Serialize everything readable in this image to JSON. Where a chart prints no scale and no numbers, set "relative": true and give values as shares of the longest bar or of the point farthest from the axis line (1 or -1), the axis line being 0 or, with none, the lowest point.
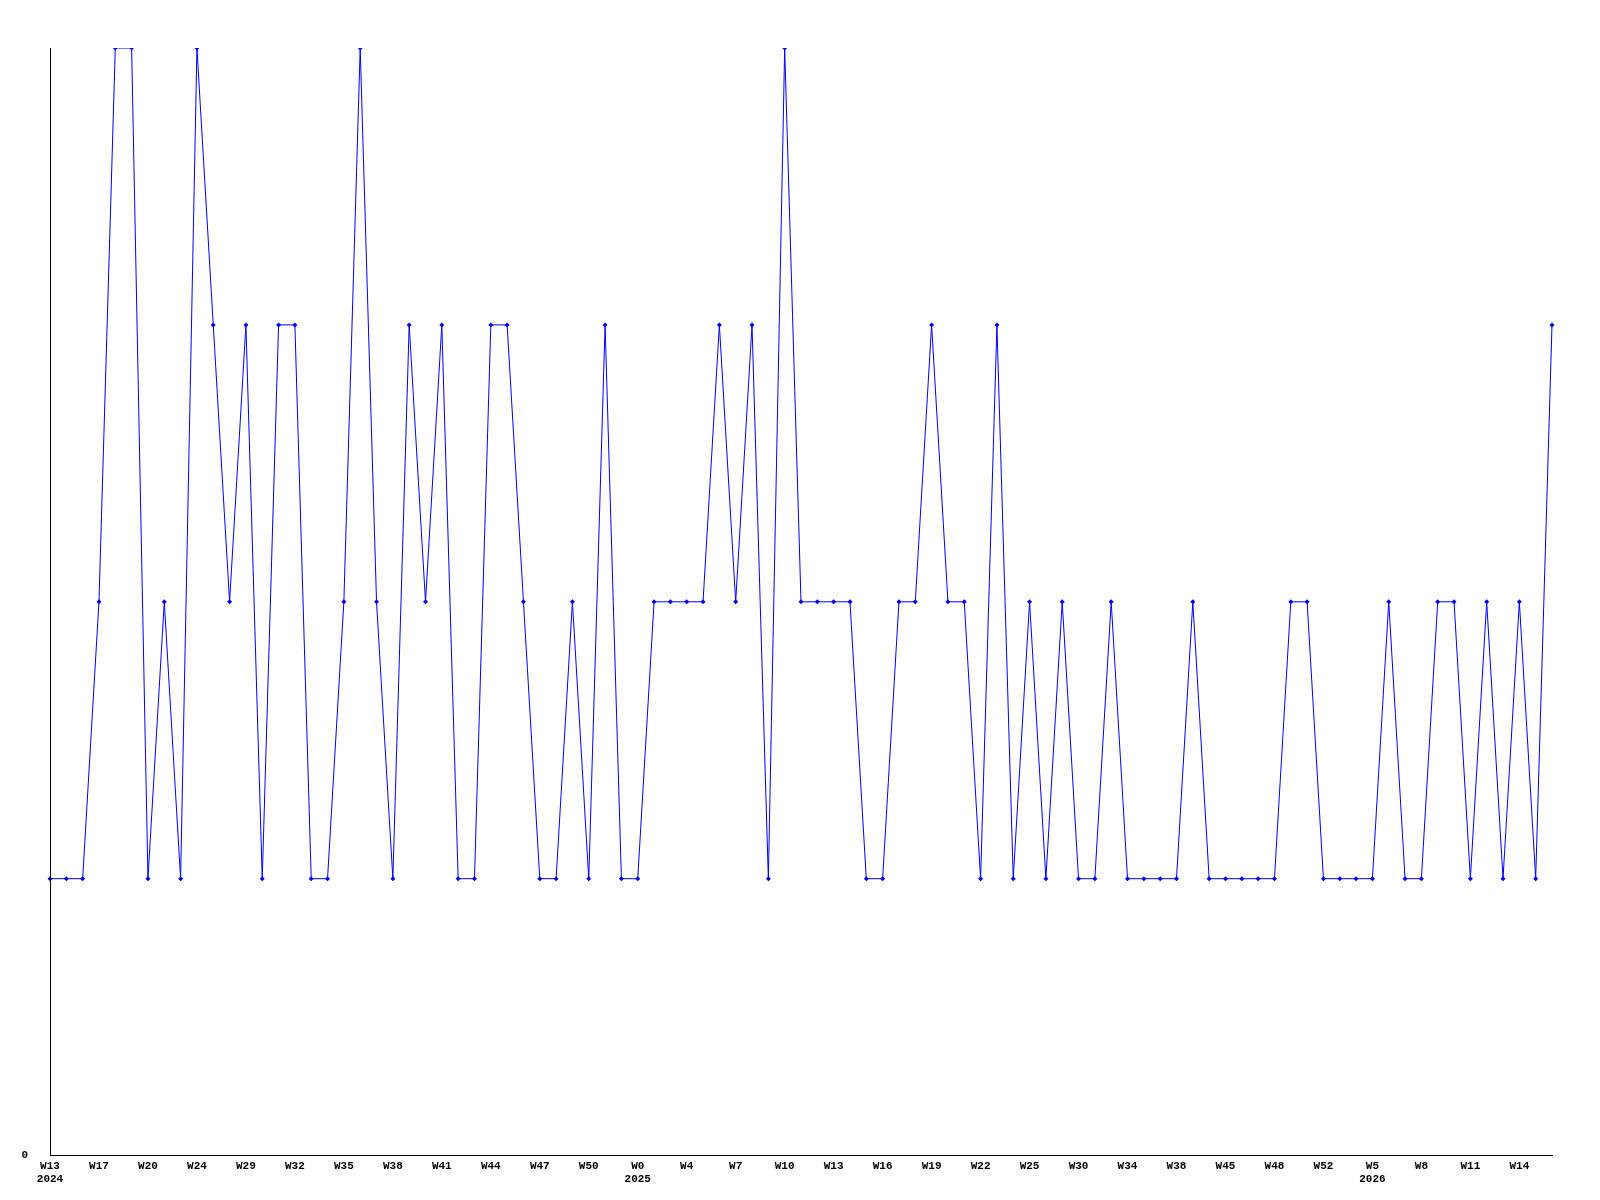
{
  "chart_data": {
    "type": "line",
    "relative": true,
    "color": "#0000ff",
    "marker": "diamond",
    "grid": false,
    "legend": false,
    "categories": [
      "W13\n2024",
      null,
      null,
      "W17",
      null,
      null,
      "W20",
      null,
      null,
      "W24",
      null,
      null,
      "W29",
      null,
      null,
      "W32",
      null,
      null,
      "W35",
      null,
      null,
      "W38",
      null,
      null,
      "W41",
      null,
      null,
      "W44",
      null,
      null,
      "W47",
      null,
      null,
      "W50",
      null,
      null,
      "W0\n2025",
      null,
      null,
      "W4",
      null,
      null,
      "W7",
      null,
      null,
      "W10",
      null,
      null,
      "W13",
      null,
      null,
      "W16",
      null,
      null,
      "W19",
      null,
      null,
      "W22",
      null,
      null,
      "W25",
      null,
      null,
      "W30",
      null,
      null,
      "W34",
      null,
      null,
      "W38",
      null,
      null,
      "W45",
      null,
      null,
      "W48",
      null,
      null,
      "W52",
      null,
      null,
      "W5\n2026",
      null,
      null,
      "W8",
      null,
      null,
      "W11",
      null,
      null,
      "W14",
      null,
      null
    ],
    "values": [
      0.25,
      0.25,
      0.25,
      0.5,
      1,
      1,
      0.25,
      0.5,
      0.25,
      1,
      0.75,
      0.5,
      0.75,
      0.25,
      0.75,
      0.75,
      0.25,
      0.25,
      0.5,
      1,
      0.5,
      0.25,
      0.75,
      0.5,
      0.75,
      0.25,
      0.25,
      0.75,
      0.75,
      0.5,
      0.25,
      0.25,
      0.5,
      0.25,
      0.75,
      0.25,
      0.25,
      0.5,
      0.5,
      0.5,
      0.5,
      0.75,
      0.5,
      0.75,
      0.25,
      1,
      0.5,
      0.5,
      0.5,
      0.5,
      0.25,
      0.25,
      0.5,
      0.5,
      0.75,
      0.5,
      0.5,
      0.25,
      0.75,
      0.25,
      0.5,
      0.25,
      0.5,
      0.25,
      0.25,
      0.5,
      0.25,
      0.25,
      0.25,
      0.25,
      0.5,
      0.25,
      0.25,
      0.25,
      0.25,
      0.25,
      0.5,
      0.5,
      0.25,
      0.25,
      0.25,
      0.25,
      0.5,
      0.25,
      0.25,
      0.5,
      0.5,
      0.25,
      0.5,
      0.25,
      0.5,
      0.25,
      0.75
    ],
    "annotations": [
      "0"
    ]
  }
}
